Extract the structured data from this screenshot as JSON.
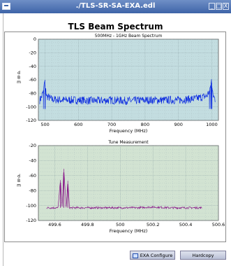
{
  "window": {
    "title": "./TLS-SR-SA-EXA.edl",
    "min_label": "_",
    "max_label": "□",
    "close_label": "X"
  },
  "heading": "TLS Beam Spectrum",
  "chart_data": [
    {
      "type": "line",
      "title": "500MHz - 1GHz Beam Spectrum",
      "xlabel": "Frequency (MHz)",
      "ylabel": "dBm",
      "xlim": [
        480,
        1020
      ],
      "ylim": [
        -120,
        0
      ],
      "xticks": [
        500,
        600,
        700,
        800,
        900,
        1000
      ],
      "yticks": [
        0,
        -20,
        -40,
        -60,
        -80,
        -100,
        -120
      ],
      "grid": true,
      "series": [
        {
          "color": "#1030e0",
          "x": [
            484,
            490,
            495,
            499.65,
            500.5,
            505,
            520,
            560,
            600,
            650,
            700,
            750,
            800,
            850,
            900,
            950,
            985,
            993,
            997,
            999.3,
            1000.5,
            1003,
            1010
          ],
          "y": [
            -90,
            -85,
            -76,
            -60,
            -72,
            -84,
            -89,
            -90,
            -90,
            -91,
            -90,
            -91,
            -90,
            -90,
            -90,
            -88,
            -84,
            -76,
            -68,
            -59,
            -70,
            -82,
            -89
          ]
        }
      ]
    },
    {
      "type": "line",
      "title": "Tune Measurement",
      "xlabel": "Frequency (MHz)",
      "ylabel": "dBm",
      "xlim": [
        499.5,
        500.6
      ],
      "ylim": [
        -120,
        -20
      ],
      "xticks": [
        499.6,
        499.8,
        500,
        500.2,
        500.4,
        500.6
      ],
      "yticks": [
        -20,
        -40,
        -60,
        -80,
        -100,
        -120
      ],
      "grid": true,
      "series": [
        {
          "color": "#8a1a8a",
          "x": [
            499.55,
            499.6,
            499.62,
            499.635,
            499.645,
            499.655,
            499.67,
            499.68,
            499.69,
            499.7,
            499.75,
            499.85,
            500.0,
            500.1,
            500.2,
            500.3,
            500.4,
            500.5
          ],
          "y": [
            -103,
            -103,
            -103,
            -66,
            -103,
            -51,
            -103,
            -67,
            -103,
            -103,
            -103,
            -103,
            -103,
            -103,
            -102,
            -103,
            -103,
            -103
          ]
        }
      ]
    }
  ],
  "buttons": {
    "exa_configure": "EXA Configure",
    "hardcopy": "Hardcopy"
  }
}
